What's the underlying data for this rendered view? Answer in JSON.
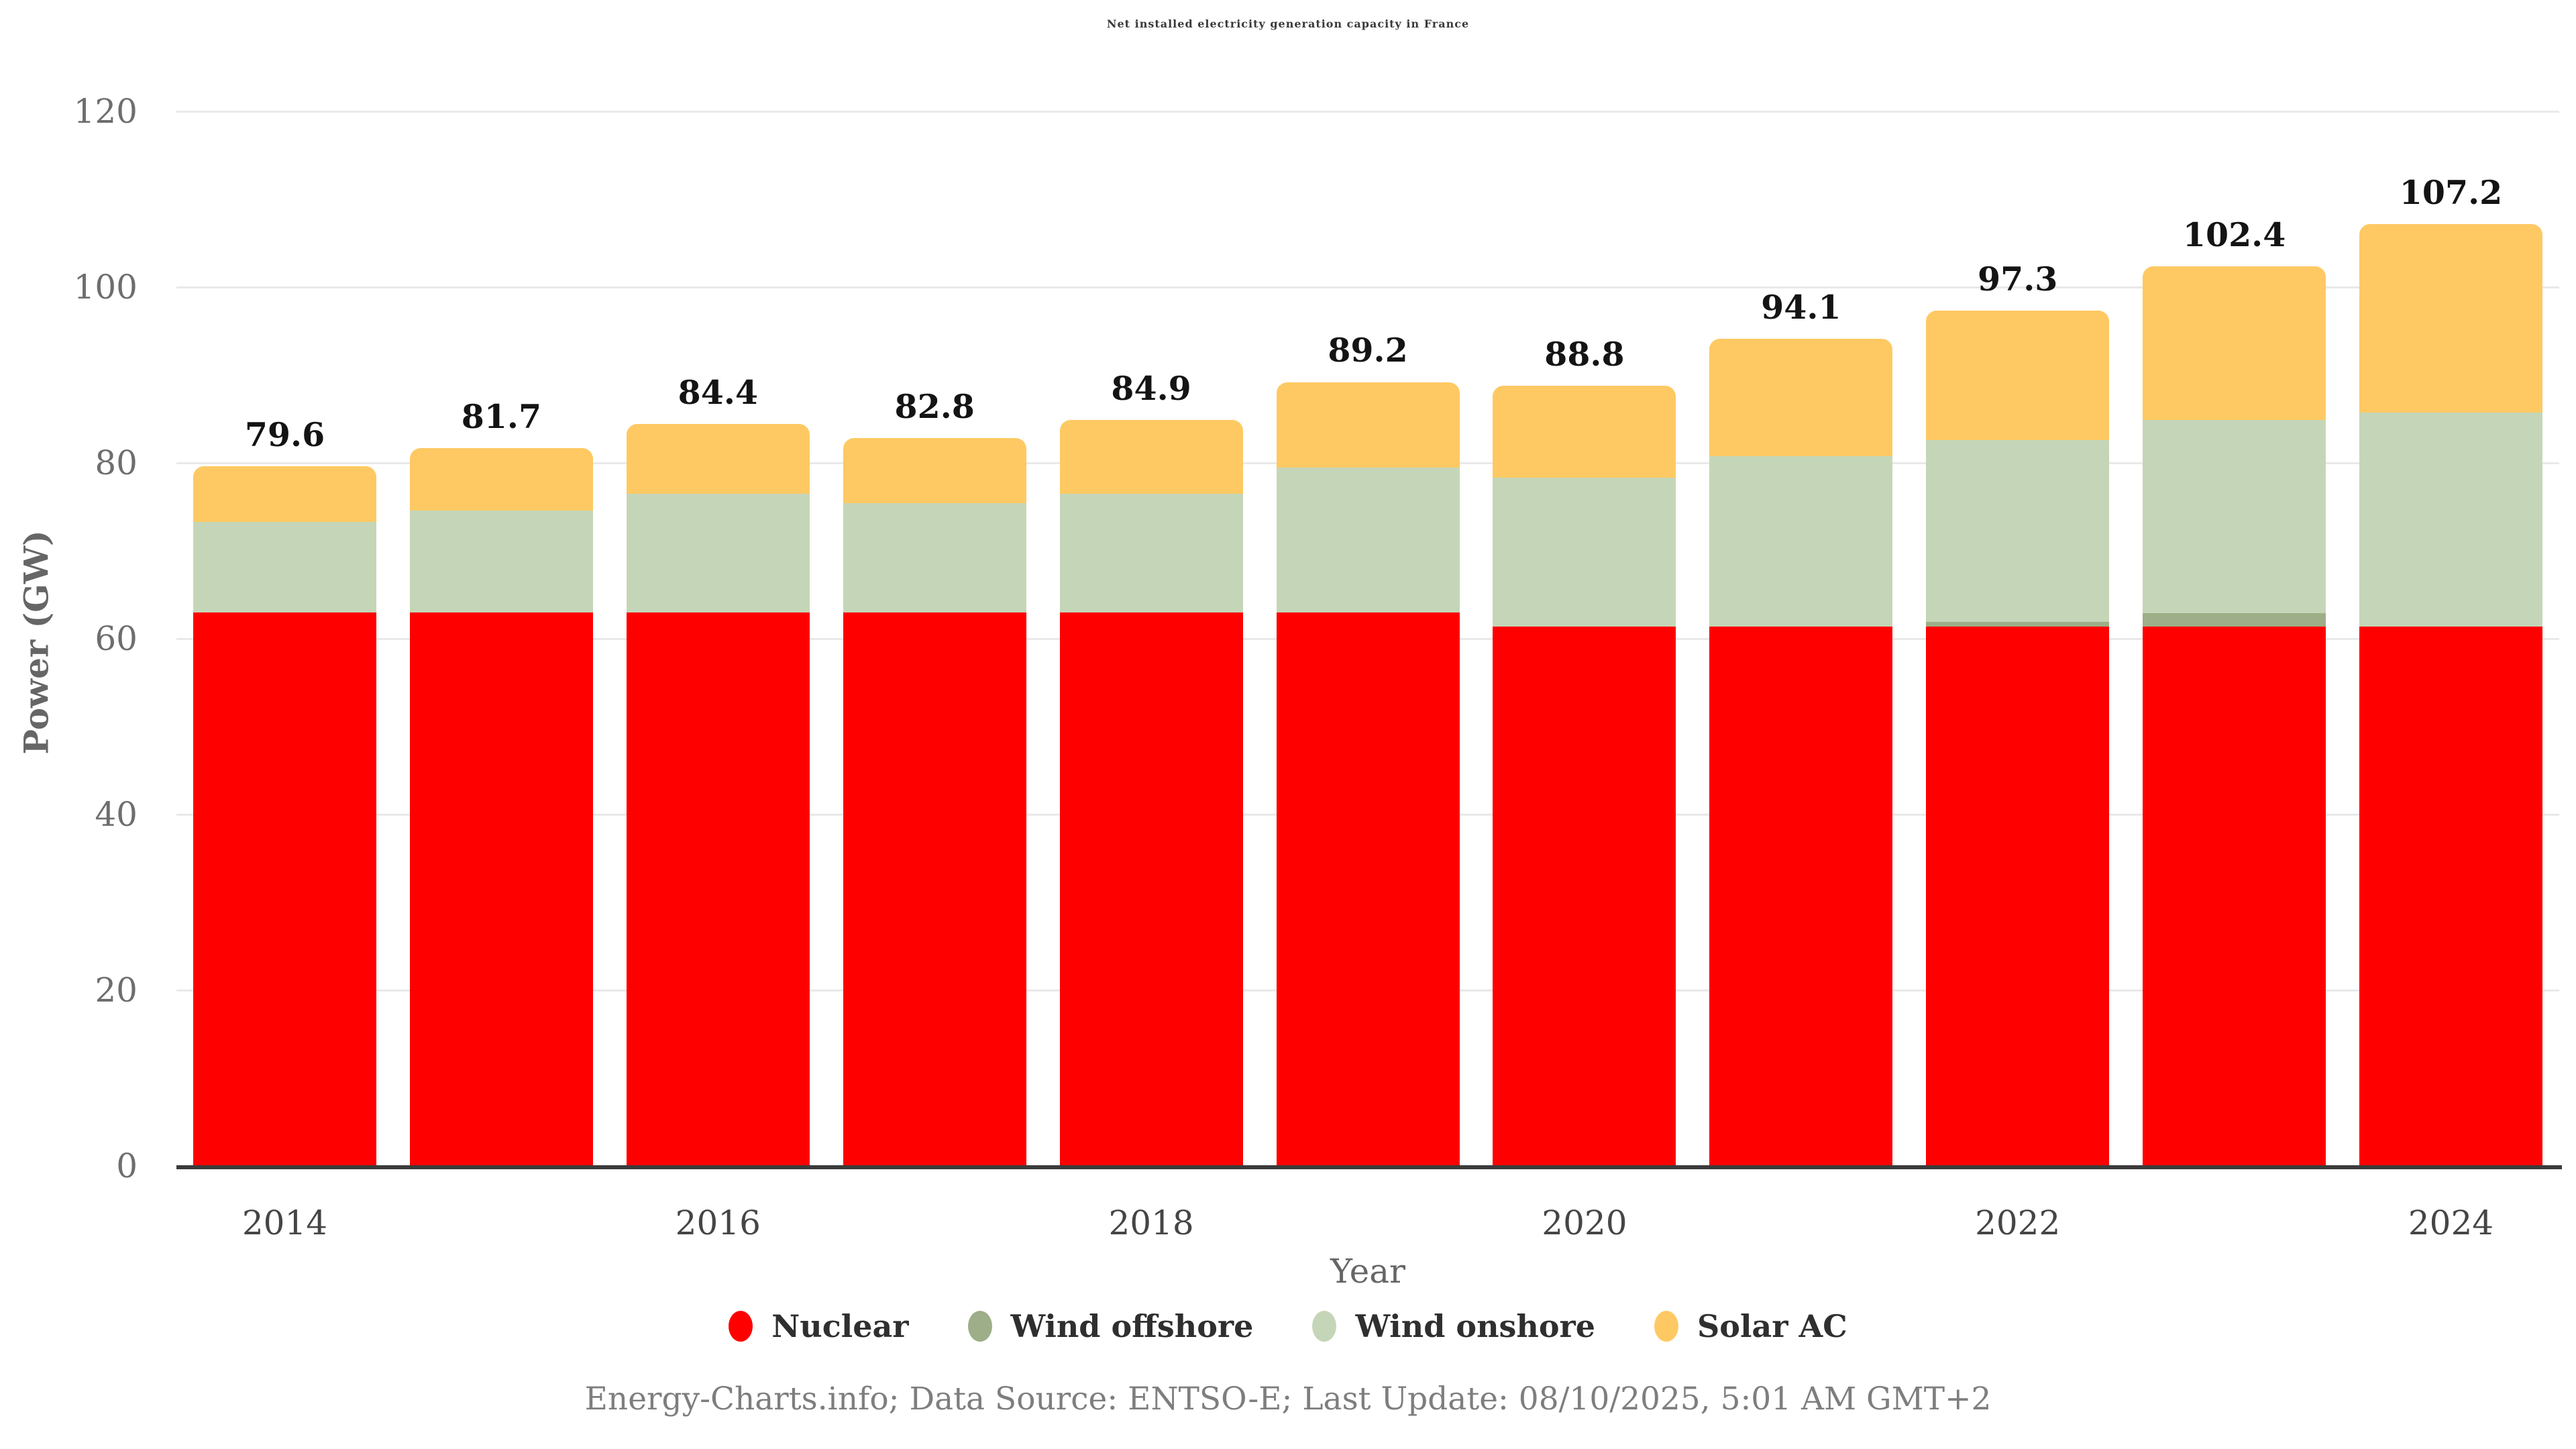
{
  "title": "Net installed electricity generation capacity in France",
  "footer": "Energy-Charts.info; Data Source: ENTSO-E; Last Update: 08/10/2025, 5:01 AM GMT+2",
  "style": {
    "background": "#ffffff",
    "title_color": "#3a3a3a",
    "grid_color": "#e9e9e9",
    "axis_line_color": "#3b3b3b",
    "ytick_color": "#6e6e6e",
    "xtick_color": "#454545",
    "axis_title_color": "#666666",
    "value_label_color": "#141414",
    "legend_text_color": "#2f2f2f",
    "footer_color": "#7e7e7e"
  },
  "chart_data": {
    "type": "bar",
    "stacked": true,
    "title": "Net installed electricity generation capacity in France",
    "xlabel": "Year",
    "ylabel": "Power (GW)",
    "ylim": [
      0,
      120
    ],
    "yticks": [
      0,
      20,
      40,
      60,
      80,
      100,
      120
    ],
    "grid": true,
    "legend_position": "bottom",
    "categories": [
      "2014",
      "2015",
      "2016",
      "2017",
      "2018",
      "2019",
      "2020",
      "2021",
      "2022",
      "2023",
      "2024"
    ],
    "xtick_labels": [
      "2014",
      "2016",
      "2018",
      "2020",
      "2022",
      "2024"
    ],
    "series": [
      {
        "name": "Nuclear",
        "color": "#fe0000",
        "values": [
          63.0,
          63.0,
          63.0,
          63.0,
          63.0,
          63.0,
          61.4,
          61.4,
          61.4,
          61.4,
          61.4
        ]
      },
      {
        "name": "Wind offshore",
        "color": "#9dae88",
        "values": [
          0,
          0,
          0,
          0,
          0,
          0,
          0,
          0,
          0.5,
          1.5,
          0
        ]
      },
      {
        "name": "Wind onshore",
        "color": "#c5d6b8",
        "values": [
          10.3,
          11.6,
          13.5,
          12.4,
          13.5,
          16.5,
          16.9,
          19.4,
          20.7,
          22.0,
          24.3
        ]
      },
      {
        "name": "Solar AC",
        "color": "#fec963",
        "values": [
          6.3,
          7.1,
          7.9,
          7.4,
          8.4,
          9.7,
          10.5,
          13.3,
          14.7,
          17.5,
          21.5
        ]
      }
    ],
    "totals": [
      79.6,
      81.7,
      84.4,
      82.8,
      84.9,
      89.2,
      88.8,
      94.1,
      97.3,
      102.4,
      107.2
    ],
    "total_labels": [
      "79.6",
      "81.7",
      "84.4",
      "82.8",
      "84.9",
      "89.2",
      "88.8",
      "94.1",
      "97.3",
      "102.4",
      "107.2"
    ]
  }
}
